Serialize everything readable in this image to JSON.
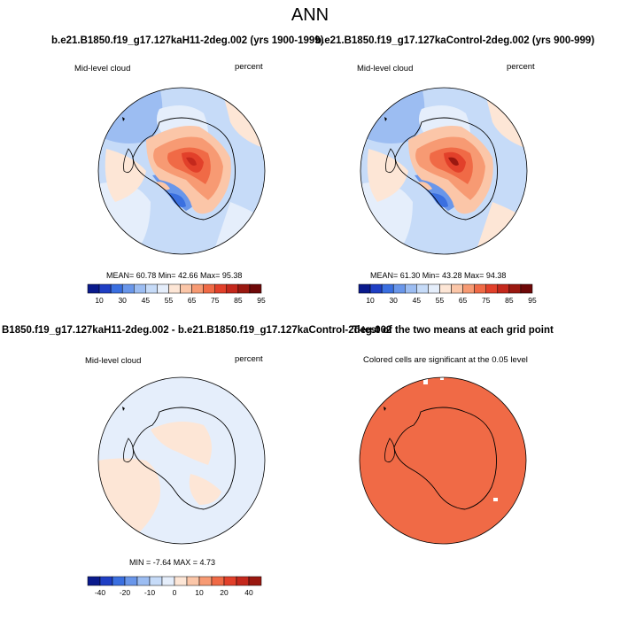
{
  "figure": {
    "title": "ANN"
  },
  "panels": [
    {
      "id": "p1",
      "case_title": "b.e21.B1850.f19_g17.127kaH11-2deg.002 (yrs 1900-1999)",
      "left_label": "Mid-level cloud",
      "right_label": "percent",
      "stats": "MEAN= 60.78  Min= 42.66  Max= 95.38",
      "stat_values": {
        "mean": 60.78,
        "min": 42.66,
        "max": 95.38
      }
    },
    {
      "id": "p2",
      "case_title": "b.e21.B1850.f19_g17.127kaControl-2deg.002 (yrs 900-999)",
      "left_label": "Mid-level cloud",
      "right_label": "percent",
      "stats": "MEAN= 61.30  Min= 43.28  Max= 94.38",
      "stat_values": {
        "mean": 61.3,
        "min": 43.28,
        "max": 94.38
      }
    },
    {
      "id": "p3",
      "case_title": "B1850.f19_g17.127kaH11-2deg.002 - b.e21.B1850.f19_g17.127kaControl-2deg.002",
      "left_label": "Mid-level cloud",
      "right_label": "percent",
      "stats": "MIN = -7.64  MAX =  4.73",
      "stat_values": {
        "min": -7.64,
        "max": 4.73
      }
    },
    {
      "id": "p4",
      "case_title": "T-test of the two means at each grid point",
      "left_label": "Colored cells are significant at the 0.05 level",
      "right_label": "",
      "stats": "",
      "stat_values": {}
    }
  ],
  "colorbars": {
    "absolute": {
      "labels": [
        "10",
        "30",
        "45",
        "55",
        "65",
        "75",
        "85",
        "95"
      ],
      "colors": [
        "#0a1a8c",
        "#1f3fc4",
        "#3a6fe0",
        "#6996ea",
        "#9cbdf2",
        "#c6dbf8",
        "#e5eefb",
        "#fde6d6",
        "#fbc6a8",
        "#f79a73",
        "#f06a46",
        "#e2402a",
        "#c4281c",
        "#9a1810",
        "#6e0808"
      ]
    },
    "difference": {
      "labels": [
        "-40",
        "-20",
        "-10",
        "0",
        "10",
        "20",
        "40"
      ],
      "colors": [
        "#0a1a8c",
        "#1f3fc4",
        "#3a6fe0",
        "#6996ea",
        "#9cbdf2",
        "#c6dbf8",
        "#e5eefb",
        "#fde6d6",
        "#fbc6a8",
        "#f79a73",
        "#f06a46",
        "#e2402a",
        "#c4281c",
        "#9a1810"
      ]
    }
  },
  "chart_data": [
    {
      "type": "heatmap",
      "projection": "south-polar-stereographic",
      "title": "b.e21.B1850.f19_g17.127kaH11-2deg.002 (yrs 1900-1999)",
      "variable": "Mid-level cloud",
      "units": "percent",
      "season": "ANN",
      "mean": 60.78,
      "min": 42.66,
      "max": 95.38,
      "contour_levels": [
        10,
        30,
        45,
        55,
        65,
        75,
        85,
        95
      ]
    },
    {
      "type": "heatmap",
      "projection": "south-polar-stereographic",
      "title": "b.e21.B1850.f19_g17.127kaControl-2deg.002 (yrs 900-999)",
      "variable": "Mid-level cloud",
      "units": "percent",
      "season": "ANN",
      "mean": 61.3,
      "min": 43.28,
      "max": 94.38,
      "contour_levels": [
        10,
        30,
        45,
        55,
        65,
        75,
        85,
        95
      ]
    },
    {
      "type": "heatmap",
      "projection": "south-polar-stereographic",
      "title": "B1850.f19_g17.127kaH11-2deg.002 - b.e21.B1850.f19_g17.127kaControl-2deg.002",
      "variable": "Mid-level cloud",
      "units": "percent",
      "min": -7.64,
      "max": 4.73,
      "contour_levels": [
        -40,
        -20,
        -10,
        0,
        10,
        20,
        40
      ]
    },
    {
      "type": "heatmap",
      "projection": "south-polar-stereographic",
      "title": "T-test of the two means at each grid point",
      "annotation": "Colored cells are significant at the 0.05 level",
      "significance_level": 0.05
    }
  ]
}
